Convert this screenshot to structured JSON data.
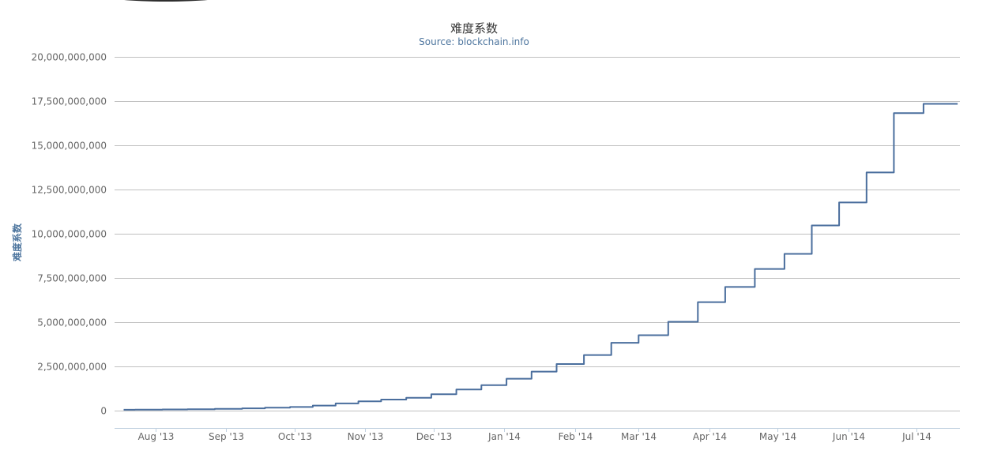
{
  "chart_data": {
    "type": "line",
    "title": "难度系数",
    "subtitle": "Source: blockchain.info",
    "xlabel": "",
    "ylabel": "难度系数",
    "line_shape": "step",
    "ylim": [
      -1000000000,
      20000000000
    ],
    "y_ticks": [
      0,
      2500000000,
      5000000000,
      7500000000,
      10000000000,
      12500000000,
      15000000000,
      17500000000,
      20000000000
    ],
    "y_tick_labels": [
      "0",
      "2,500,000,000",
      "5,000,000,000",
      "7,500,000,000",
      "10,000,000,000",
      "12,500,000,000",
      "15,000,000,000",
      "17,500,000,000",
      "20,000,000,000"
    ],
    "xlim": [
      "2013-07-14",
      "2014-07-20"
    ],
    "x_ticks": [
      "2013-08-01",
      "2013-09-01",
      "2013-10-01",
      "2013-11-01",
      "2013-12-01",
      "2014-01-01",
      "2014-02-01",
      "2014-03-01",
      "2014-04-01",
      "2014-05-01",
      "2014-06-01",
      "2014-07-01"
    ],
    "x_tick_labels": [
      "Aug '13",
      "Sep '13",
      "Oct '13",
      "Nov '13",
      "Dec '13",
      "Jan '14",
      "Feb '14",
      "Mar '14",
      "Apr '14",
      "May '14",
      "Jun '14",
      "Jul '14"
    ],
    "grid": true,
    "legend": "none",
    "series_color": "#4a6e9d",
    "series": [
      {
        "x": [
          "2013-07-18",
          "2013-07-23",
          "2013-08-04",
          "2013-08-15",
          "2013-08-27",
          "2013-09-08",
          "2013-09-18",
          "2013-09-29",
          "2013-10-09",
          "2013-10-19",
          "2013-10-29",
          "2013-11-08",
          "2013-11-19",
          "2013-11-30",
          "2013-12-11",
          "2013-12-22",
          "2014-01-02",
          "2014-01-13",
          "2014-01-24",
          "2014-02-05",
          "2014-02-17",
          "2014-03-01",
          "2014-03-14",
          "2014-03-27",
          "2014-04-08",
          "2014-04-21",
          "2014-05-04",
          "2014-05-16",
          "2014-05-28",
          "2014-06-09",
          "2014-06-21",
          "2014-07-04",
          "2014-07-17",
          "2014-07-19"
        ],
        "values": [
          30000000,
          40000000,
          50000000,
          65000000,
          86000000,
          112000000,
          148000000,
          189000000,
          267000000,
          390000000,
          510000000,
          610000000,
          710000000,
          908000000,
          1180000000,
          1420000000,
          1790000000,
          2190000000,
          2620000000,
          3130000000,
          3820000000,
          4250000000,
          5010000000,
          6120000000,
          6980000000,
          8000000000,
          8850000000,
          10460000000,
          11760000000,
          13460000000,
          16820000000,
          17340000000,
          17340000000,
          17340000000
        ]
      }
    ]
  }
}
